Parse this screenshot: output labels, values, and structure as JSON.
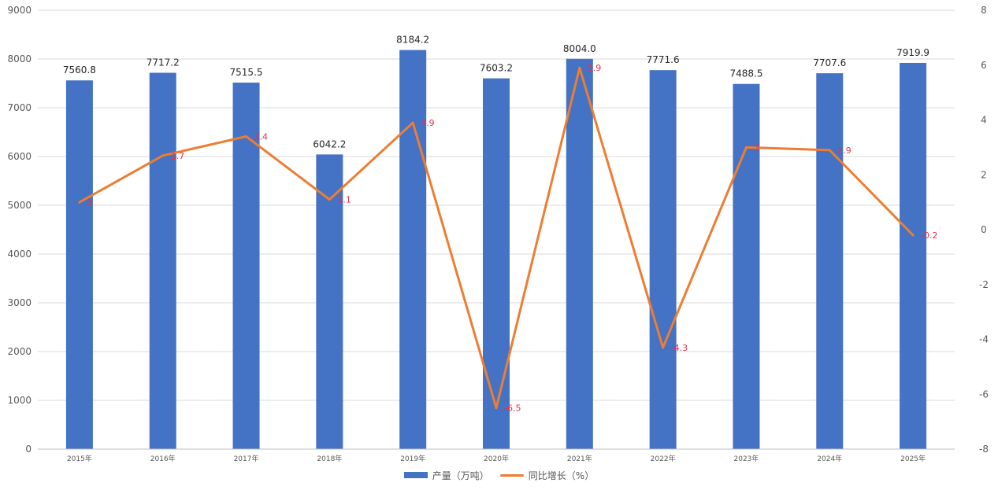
{
  "chart_data": {
    "type": "bar",
    "categories": [
      "2015年",
      "2016年",
      "2017年",
      "2018年",
      "2019年",
      "2020年",
      "2021年",
      "2022年",
      "2023年",
      "2024年",
      "2025年"
    ],
    "series": [
      {
        "name": "产量（万吨）",
        "type": "bar",
        "axis": "left",
        "color": "#4472C4",
        "values": [
          7560.8,
          7717.2,
          7515.5,
          6042.2,
          8184.2,
          7603.2,
          8004.0,
          7771.6,
          7488.5,
          7707.6,
          7919.9
        ],
        "labels": [
          "7560.8",
          "7717.2",
          "7515.5",
          "6042.2",
          "8184.2",
          "7603.2",
          "8004.0",
          "7771.6",
          "7488.5",
          "7707.6",
          "7919.9"
        ]
      },
      {
        "name": "同比增长（%）",
        "type": "line",
        "axis": "right",
        "color": "#ED7D31",
        "values": [
          1,
          2.7,
          3.4,
          1.1,
          3.9,
          -6.5,
          5.9,
          -4.3,
          3,
          2.9,
          -0.2
        ],
        "labels": [
          "1",
          "2.7",
          "3.4",
          "1.1",
          "3.9",
          "-6.5",
          "5.9",
          "-4.3",
          "3",
          "2.9",
          "-0.2"
        ]
      }
    ],
    "y_left": {
      "min": 0,
      "max": 9000,
      "ticks": [
        "0",
        "1000",
        "2000",
        "3000",
        "4000",
        "5000",
        "6000",
        "7000",
        "8000",
        "9000"
      ]
    },
    "y_right": {
      "min": -8,
      "max": 8,
      "ticks": [
        "-8",
        "-6",
        "-4",
        "-2",
        "0",
        "2",
        "4",
        "6",
        "8"
      ]
    },
    "grid": true,
    "legend_position": "bottom",
    "line_label_color": "#E8334A"
  }
}
